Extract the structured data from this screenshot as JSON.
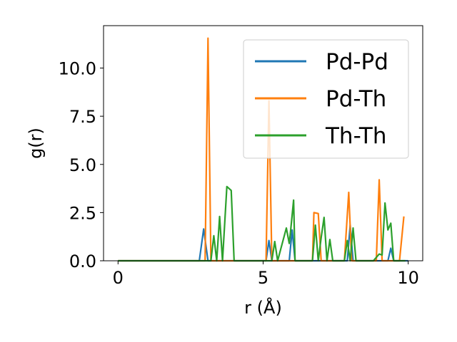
{
  "chart_data": {
    "type": "line",
    "xlabel": "r (Å)",
    "ylabel": "g(r)",
    "xlim": [
      -0.5,
      10.5
    ],
    "ylim": [
      0,
      12.2
    ],
    "xticks": [
      0,
      5,
      10
    ],
    "yticks": [
      0.0,
      2.5,
      5.0,
      7.5,
      10.0
    ],
    "xtick_labels": [
      "0",
      "5",
      "10"
    ],
    "ytick_labels": [
      "0.0",
      "2.5",
      "5.0",
      "7.5",
      "10.0"
    ],
    "grid": false,
    "legend_position": "top-right",
    "colors": {
      "Pd-Pd": "#1f77b4",
      "Pd-Th": "#ff7f0e",
      "Th-Th": "#2ca02c"
    },
    "series": [
      {
        "name": "Pd-Pd",
        "x": [
          0,
          2.8,
          2.95,
          3.1,
          5.1,
          5.2,
          5.3,
          5.9,
          6.0,
          6.1,
          7.9,
          8.0,
          8.1,
          9.3,
          9.4,
          9.5,
          10.0
        ],
        "y": [
          0,
          0,
          1.65,
          0,
          0,
          1.05,
          0,
          0,
          1.6,
          0,
          0,
          1.85,
          0,
          0,
          0.65,
          0,
          0
        ]
      },
      {
        "name": "Pd-Th",
        "x": [
          0,
          3.0,
          3.1,
          3.2,
          5.1,
          5.2,
          5.3,
          6.7,
          6.75,
          6.9,
          7.0,
          7.8,
          7.95,
          8.05,
          8.9,
          9.0,
          9.1,
          9.7,
          9.85
        ],
        "y": [
          0,
          0,
          11.55,
          0,
          0,
          8.3,
          0,
          0,
          2.5,
          2.45,
          0,
          0,
          3.55,
          0,
          0,
          4.2,
          0,
          0,
          2.3
        ]
      },
      {
        "name": "Th-Th",
        "x": [
          0,
          3.2,
          3.3,
          3.4,
          3.5,
          3.6,
          3.75,
          3.9,
          4.0,
          5.3,
          5.4,
          5.5,
          5.8,
          5.9,
          5.95,
          6.05,
          6.1,
          6.7,
          6.8,
          6.9,
          7.0,
          7.1,
          7.2,
          7.3,
          7.4,
          7.8,
          7.9,
          8.0,
          8.1,
          8.2,
          8.8,
          9.0,
          9.1,
          9.2,
          9.3,
          9.4,
          9.5,
          9.9
        ],
        "y": [
          0,
          0,
          1.3,
          0,
          2.3,
          0,
          3.85,
          3.65,
          0,
          0,
          1.0,
          0,
          1.7,
          0.9,
          1.6,
          3.15,
          0,
          0,
          1.85,
          0,
          1.2,
          2.25,
          0,
          1.1,
          0,
          0,
          1.05,
          0,
          1.7,
          0,
          0,
          0.35,
          0.3,
          3.0,
          1.6,
          1.95,
          0,
          0
        ]
      }
    ]
  }
}
